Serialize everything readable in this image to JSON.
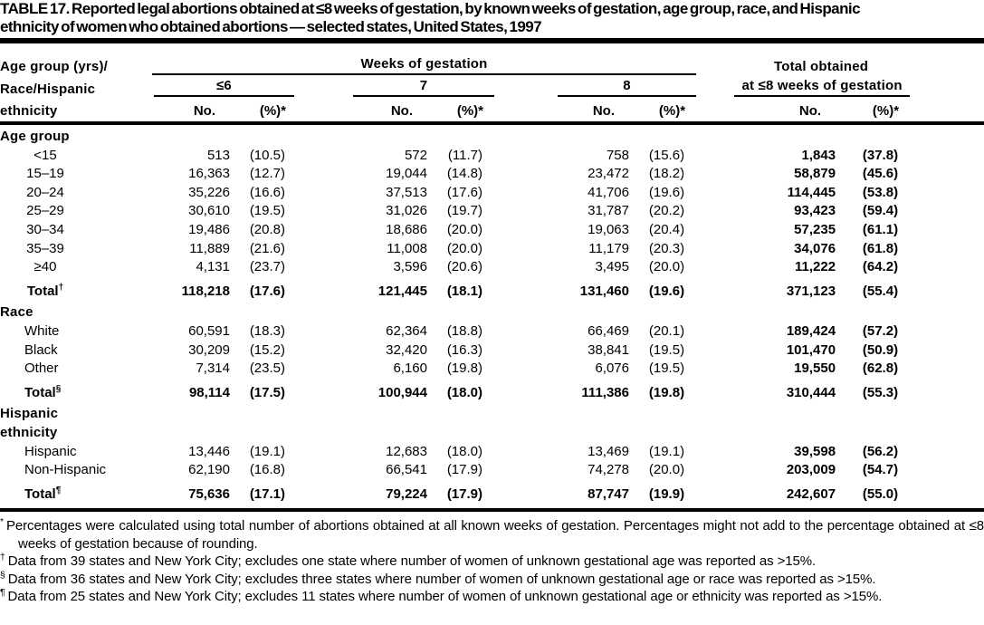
{
  "title": {
    "line1": "TABLE 17. Reported legal abortions obtained at ≤8 weeks of gestation, by known weeks of gestation, age group, race, and Hispanic",
    "line2": "ethnicity of women who obtained abortions — selected states, United States, 1997"
  },
  "header": {
    "stub_lines": [
      "Age group (yrs)/",
      "Race/Hispanic",
      "ethnicity"
    ],
    "weeks_label": "Weeks of gestation",
    "week_columns": [
      "≤6",
      "7",
      "8"
    ],
    "total_line1": "Total obtained",
    "total_line2": "at ≤8 weeks of gestation",
    "no_label": "No.",
    "pct_label": "(%)*"
  },
  "table": {
    "sections": [
      {
        "label_lines": [
          "Age group"
        ],
        "rows": [
          {
            "label": "<15",
            "total": false,
            "cells": [
              "513",
              "(10.5)",
              "572",
              "(11.7)",
              "758",
              "(15.6)",
              "1,843",
              "(37.8)"
            ]
          },
          {
            "label": "15–19",
            "total": false,
            "cells": [
              "16,363",
              "(12.7)",
              "19,044",
              "(14.8)",
              "23,472",
              "(18.2)",
              "58,879",
              "(45.6)"
            ]
          },
          {
            "label": "20–24",
            "total": false,
            "cells": [
              "35,226",
              "(16.6)",
              "37,513",
              "(17.6)",
              "41,706",
              "(19.6)",
              "114,445",
              "(53.8)"
            ]
          },
          {
            "label": "25–29",
            "total": false,
            "cells": [
              "30,610",
              "(19.5)",
              "31,026",
              "(19.7)",
              "31,787",
              "(20.2)",
              "93,423",
              "(59.4)"
            ]
          },
          {
            "label": "30–34",
            "total": false,
            "cells": [
              "19,486",
              "(20.8)",
              "18,686",
              "(20.0)",
              "19,063",
              "(20.4)",
              "57,235",
              "(61.1)"
            ]
          },
          {
            "label": "35–39",
            "total": false,
            "cells": [
              "11,889",
              "(21.6)",
              "11,008",
              "(20.0)",
              "11,179",
              "(20.3)",
              "34,076",
              "(61.8)"
            ]
          },
          {
            "label": "≥40",
            "total": false,
            "cells": [
              "4,131",
              "(23.7)",
              "3,596",
              "(20.6)",
              "3,495",
              "(20.0)",
              "11,222",
              "(64.2)"
            ]
          },
          {
            "label": "Total",
            "marker": "†",
            "total": true,
            "cells": [
              "118,218",
              "(17.6)",
              "121,445",
              "(18.1)",
              "131,460",
              "(19.6)",
              "371,123",
              "(55.4)"
            ]
          }
        ]
      },
      {
        "label_lines": [
          "Race"
        ],
        "rows": [
          {
            "label": "White",
            "total": false,
            "cells": [
              "60,591",
              "(18.3)",
              "62,364",
              "(18.8)",
              "66,469",
              "(20.1)",
              "189,424",
              "(57.2)"
            ]
          },
          {
            "label": "Black",
            "total": false,
            "cells": [
              "30,209",
              "(15.2)",
              "32,420",
              "(16.3)",
              "38,841",
              "(19.5)",
              "101,470",
              "(50.9)"
            ]
          },
          {
            "label": "Other",
            "total": false,
            "cells": [
              "7,314",
              "(23.5)",
              "6,160",
              "(19.8)",
              "6,076",
              "(19.5)",
              "19,550",
              "(62.8)"
            ]
          },
          {
            "label": "Total",
            "marker": "§",
            "total": true,
            "cells": [
              "98,114",
              "(17.5)",
              "100,944",
              "(18.0)",
              "111,386",
              "(19.8)",
              "310,444",
              "(55.3)"
            ]
          }
        ]
      },
      {
        "label_lines": [
          "Hispanic",
          "ethnicity"
        ],
        "rows": [
          {
            "label": "Hispanic",
            "total": false,
            "cells": [
              "13,446",
              "(19.1)",
              "12,683",
              "(18.0)",
              "13,469",
              "(19.1)",
              "39,598",
              "(56.2)"
            ]
          },
          {
            "label": "Non-Hispanic",
            "total": false,
            "cells": [
              "62,190",
              "(16.8)",
              "66,541",
              "(17.9)",
              "74,278",
              "(20.0)",
              "203,009",
              "(54.7)"
            ]
          },
          {
            "label": "Total",
            "marker": "¶",
            "total": true,
            "cells": [
              "75,636",
              "(17.1)",
              "79,224",
              "(17.9)",
              "87,747",
              "(19.9)",
              "242,607",
              "(55.0)"
            ]
          }
        ]
      }
    ]
  },
  "footnotes": [
    {
      "marker": "*",
      "text": "Percentages were calculated using total number of abortions obtained at all known weeks of gestation. Percentages might not add to the percentage obtained at ≤8 weeks of gestation because of rounding."
    },
    {
      "marker": "†",
      "text": "Data from 39 states and New York City; excludes one state where number of women of unknown gestational age was reported as >15%."
    },
    {
      "marker": "§",
      "text": "Data from 36 states and New York City; excludes three states where number of women of unknown gestational age or race was reported as >15%."
    },
    {
      "marker": "¶",
      "text": "Data from 25 states and New York City; excludes 11 states where number of women of unknown gestational age or ethnicity was reported as >15%."
    }
  ]
}
